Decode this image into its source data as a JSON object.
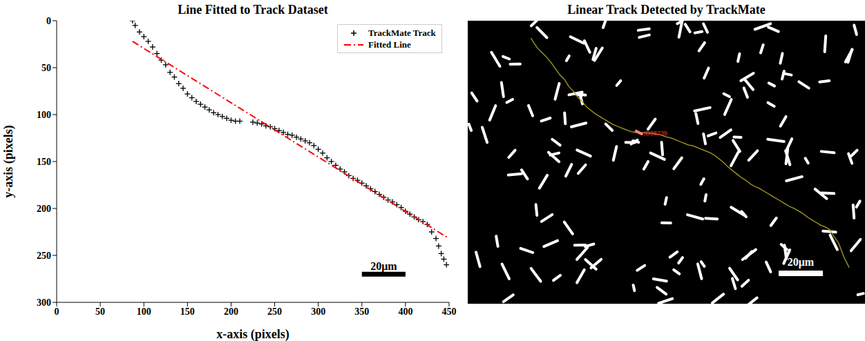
{
  "chart_data": [
    {
      "type": "scatter",
      "title": "Line Fitted to Track Dataset",
      "x_label": "x-axis (pixels)",
      "y_label": "y-axis (pixels)",
      "xlim": [
        0,
        450
      ],
      "xticks": [
        0,
        50,
        100,
        150,
        200,
        250,
        300,
        350,
        400,
        450
      ],
      "ylim": [
        300,
        0
      ],
      "yticks": [
        0,
        50,
        100,
        150,
        200,
        250,
        300
      ],
      "grid": false,
      "legend": "upper right",
      "series": [
        {
          "name": "TrackMate Track",
          "type": "scatter",
          "color": "#000000",
          "marker": "plus",
          "x": [
            87,
            90,
            95,
            100,
            105,
            110,
            115,
            120,
            125,
            130,
            135,
            140,
            145,
            150,
            155,
            160,
            165,
            170,
            175,
            180,
            185,
            190,
            195,
            200,
            205,
            210,
            225,
            230,
            235,
            240,
            245,
            250,
            255,
            260,
            265,
            270,
            275,
            280,
            285,
            290,
            295,
            300,
            305,
            310,
            315,
            320,
            325,
            330,
            335,
            340,
            345,
            350,
            355,
            360,
            365,
            370,
            375,
            380,
            385,
            390,
            395,
            400,
            405,
            410,
            415,
            420,
            425,
            430,
            435,
            438,
            441,
            444,
            447
          ],
          "values": [
            0,
            5,
            12,
            17,
            22,
            28,
            35,
            42,
            47,
            55,
            60,
            67,
            72,
            78,
            82,
            86,
            89,
            92,
            95,
            98,
            100,
            102,
            104,
            106,
            107,
            107,
            108,
            109,
            110,
            112,
            113,
            115,
            117,
            119,
            121,
            122,
            124,
            126,
            128,
            130,
            133,
            137,
            141,
            146,
            150,
            154,
            158,
            161,
            165,
            168,
            170,
            173,
            176,
            179,
            182,
            185,
            188,
            191,
            193,
            196,
            199,
            203,
            206,
            209,
            212,
            214,
            217,
            225,
            232,
            240,
            248,
            254,
            260
          ]
        },
        {
          "name": "Fitted Line",
          "type": "line",
          "color": "#ff0000",
          "line_style": "dashdot",
          "x": [
            87,
            450
          ],
          "values": [
            22,
            232
          ]
        }
      ],
      "annotations": [
        {
          "text": "20μm",
          "x": [
            350,
            400
          ],
          "y": 270
        }
      ]
    },
    {
      "type": "image",
      "title": "Linear Track Detected by TrackMate",
      "track_label": "ID38239",
      "scale_bar": "20μm"
    }
  ]
}
